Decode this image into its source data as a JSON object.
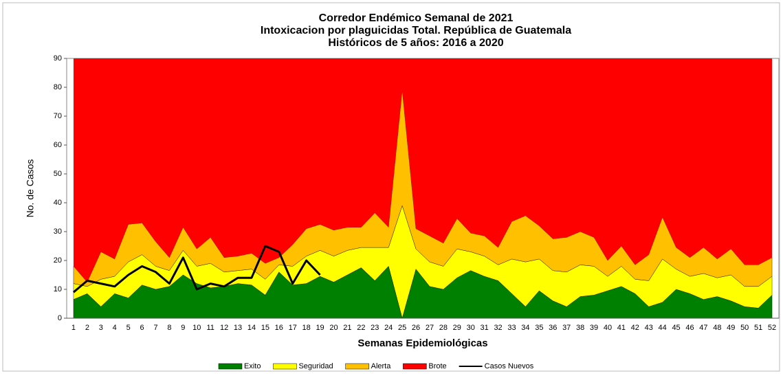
{
  "chart_data": {
    "type": "stacked_area",
    "title": [
      "Corredor Endémico Semanal de 2021",
      "Intoxicacion por plaguicidas Total.  República de Guatemala",
      "Históricos de 5 años: 2016 a 2020"
    ],
    "x_label": "Semanas Epidemiológicas",
    "y_label": "No. de Casos",
    "categories": [
      "1",
      "2",
      "3",
      "4",
      "5",
      "6",
      "7",
      "8",
      "9",
      "10",
      "11",
      "12",
      "13",
      "14",
      "15",
      "16",
      "17",
      "18",
      "19",
      "20",
      "21",
      "22",
      "23",
      "24",
      "25",
      "26",
      "27",
      "28",
      "29",
      "30",
      "31",
      "32",
      "33",
      "34",
      "35",
      "36",
      "37",
      "38",
      "39",
      "40",
      "41",
      "42",
      "43",
      "44",
      "45",
      "46",
      "47",
      "48",
      "49",
      "50",
      "51",
      "52"
    ],
    "ylim": [
      0,
      90
    ],
    "yticks": [
      0,
      10,
      20,
      30,
      40,
      50,
      60,
      70,
      80,
      90
    ],
    "legend": "bottom",
    "series": [
      {
        "name": "Exito",
        "color": "#008000",
        "values": [
          6.5,
          8.5,
          4,
          8.5,
          7,
          11.5,
          10,
          11,
          15,
          12,
          10.5,
          11,
          12,
          11.5,
          8,
          16,
          11.5,
          12,
          14.5,
          12.5,
          15,
          17.5,
          13,
          18,
          0,
          17,
          11,
          10,
          14,
          16.5,
          14.5,
          13,
          8.5,
          4,
          9.5,
          6,
          4,
          7.5,
          8,
          9.5,
          11,
          8.5,
          4,
          5.5,
          10,
          8.5,
          6.5,
          7.5,
          6,
          4,
          3.5,
          8
        ]
      },
      {
        "name": "Seguridad",
        "color": "#ffff00",
        "values": [
          5.5,
          2.5,
          9.5,
          6,
          12.5,
          10.5,
          8,
          5.5,
          8.5,
          6,
          8.5,
          5,
          4.5,
          5.5,
          5.5,
          2.5,
          6.5,
          9.5,
          9,
          9,
          8.5,
          7,
          11.5,
          6.5,
          39,
          7,
          8.5,
          8,
          10,
          6.5,
          7,
          5.5,
          12,
          15.5,
          11,
          10.5,
          12,
          11,
          10,
          5,
          7,
          5,
          9,
          15,
          7,
          6,
          9,
          6.5,
          9,
          7,
          7.5,
          6.5
        ]
      },
      {
        "name": "Alerta",
        "color": "#ffc000",
        "values": [
          6,
          1.5,
          9.5,
          6,
          13,
          11,
          8.5,
          4.5,
          8,
          6,
          9,
          5,
          5,
          5.5,
          5.5,
          2.5,
          7.5,
          9.5,
          9,
          9,
          8,
          7,
          12,
          7,
          40,
          7,
          9,
          8,
          10.5,
          6.5,
          7,
          6,
          13,
          16,
          11.5,
          11,
          12,
          11.5,
          10,
          5.5,
          7,
          5,
          9,
          14.5,
          7.5,
          6.5,
          9,
          6.5,
          9,
          7.5,
          7.5,
          6.5
        ]
      },
      {
        "name": "Brote",
        "color": "#ff0000",
        "fill_to_top": true
      },
      {
        "name": "Casos Nuevos",
        "color": "#000000",
        "kind": "line",
        "values": [
          9,
          13,
          12,
          11,
          15,
          18,
          16,
          12,
          21,
          10,
          12,
          11,
          14,
          14,
          25,
          23,
          12,
          20,
          15,
          null,
          null,
          null,
          null,
          null,
          null,
          null,
          null,
          null,
          null,
          null,
          null,
          null,
          null,
          null,
          null,
          null,
          null,
          null,
          null,
          null,
          null,
          null,
          null,
          null,
          null,
          null,
          null,
          null,
          null,
          null,
          null,
          null
        ]
      }
    ]
  }
}
